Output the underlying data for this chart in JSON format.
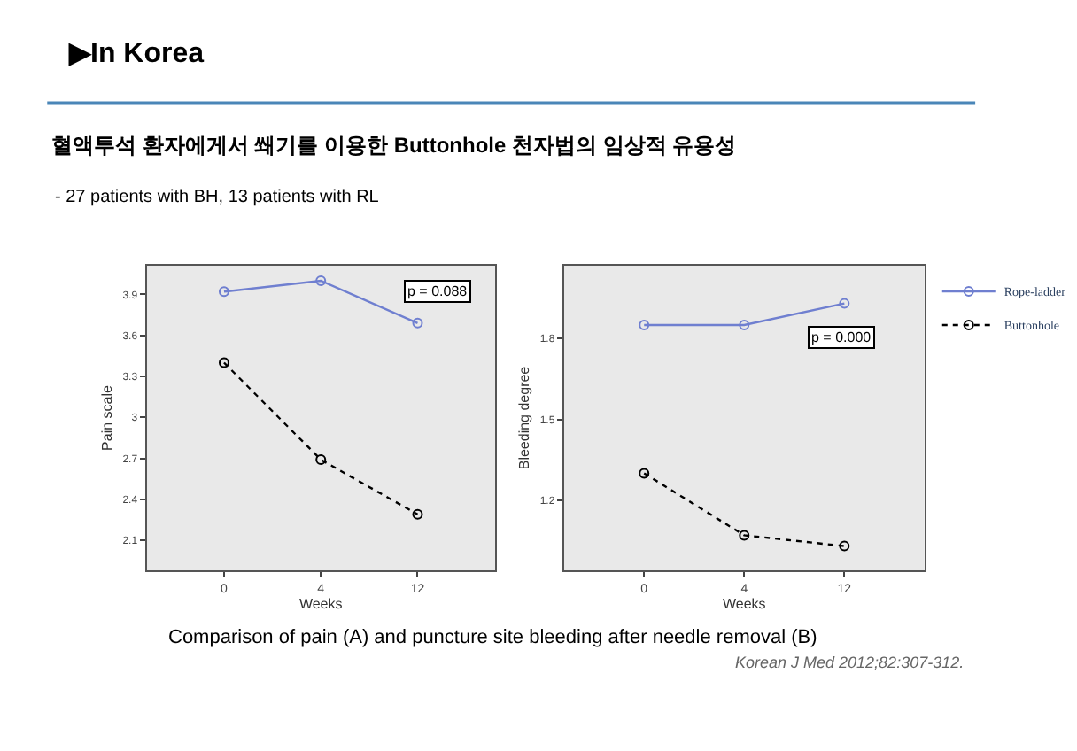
{
  "chart_data": [
    {
      "type": "line",
      "title": "▶In Korea",
      "subtitle": "혈액투석 환자에게서 쐐기를 이용한 Buttonhole 천자법의 임상적 유용성",
      "xlabel": "Weeks",
      "ylabel": "Pain scale",
      "categories": [
        "0",
        "4",
        "12"
      ],
      "series": [
        {
          "color": "#6f7fd0",
          "values": [
            3.92,
            4.0,
            3.69
          ],
          "line_style": "solid",
          "marker": "circle"
        },
        {
          "color": "#000000",
          "values": [
            3.4,
            2.69,
            2.29
          ],
          "line_style": "dotted",
          "marker": "circle"
        }
      ],
      "ylim": [
        1.88,
        4.11
      ],
      "yticks": [
        2.1,
        2.4,
        2.7,
        3,
        3.3,
        3.6,
        3.9
      ],
      "grid": false,
      "legend": false,
      "annotations": [
        "- 27 patients with BH, 13 patients with RL",
        "p = 0.088"
      ]
    },
    {
      "type": "line",
      "xlabel": "Weeks",
      "ylabel": "Bleeding degree",
      "categories": [
        "0",
        "4",
        "12"
      ],
      "series": [
        {
          "name": "Rope-ladder",
          "color": "#6f7fd0",
          "values": [
            1.85,
            1.85,
            1.93
          ],
          "line_style": "solid",
          "marker": "circle"
        },
        {
          "name": "Buttonhole",
          "color": "#000000",
          "values": [
            1.3,
            1.07,
            1.03
          ],
          "line_style": "dotted",
          "marker": "circle"
        }
      ],
      "ylim": [
        0.94,
        2.07
      ],
      "yticks": [
        1.2,
        1.5,
        1.8
      ],
      "grid": false,
      "legend": "top right",
      "annotations": [
        "p = 0.000",
        "Comparison of pain (A) and puncture site bleeding after needle removal (B)",
        "Korean J Med 2012;82:307-312."
      ]
    }
  ]
}
